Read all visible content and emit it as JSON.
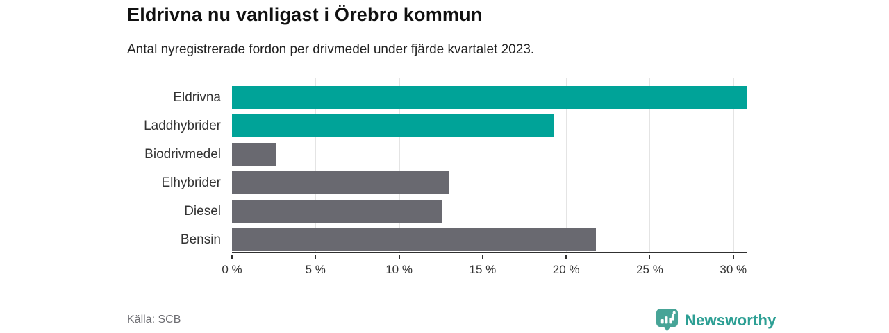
{
  "header": {
    "title": "Eldrivna nu vanligast i Örebro kommun",
    "subtitle": "Antal nyregistrerade fordon per drivmedel under fjärde kvartalet 2023."
  },
  "chart_data": {
    "type": "bar",
    "orientation": "horizontal",
    "title": "Eldrivna nu vanligast i Örebro kommun",
    "subtitle": "Antal nyregistrerade fordon per drivmedel under fjärde kvartalet 2023.",
    "categories": [
      "Eldrivna",
      "Laddhybrider",
      "Biodrivmedel",
      "Elhybrider",
      "Diesel",
      "Bensin"
    ],
    "values": [
      30.8,
      19.3,
      2.6,
      13.0,
      12.6,
      21.8
    ],
    "unit": "%",
    "bar_colors": [
      "#00a398",
      "#00a398",
      "#696970",
      "#696970",
      "#696970",
      "#696970"
    ],
    "xlim": [
      0,
      30.8
    ],
    "tick_values": [
      0,
      5,
      10,
      15,
      20,
      25,
      30
    ],
    "tick_labels": [
      "0 %",
      "5 %",
      "10 %",
      "15 %",
      "20 %",
      "25 %",
      "30 %"
    ],
    "grid": "vertical",
    "legend": "none",
    "palette": {
      "highlight": "#00a398",
      "neutral": "#696970",
      "gridline": "#e4e4e4",
      "axis": "#303030"
    }
  },
  "footer": {
    "source": "Källa: SCB",
    "logo_text": "Newsworthy",
    "logo_color": "#47a497",
    "logo_text_color": "#2d9f94"
  }
}
